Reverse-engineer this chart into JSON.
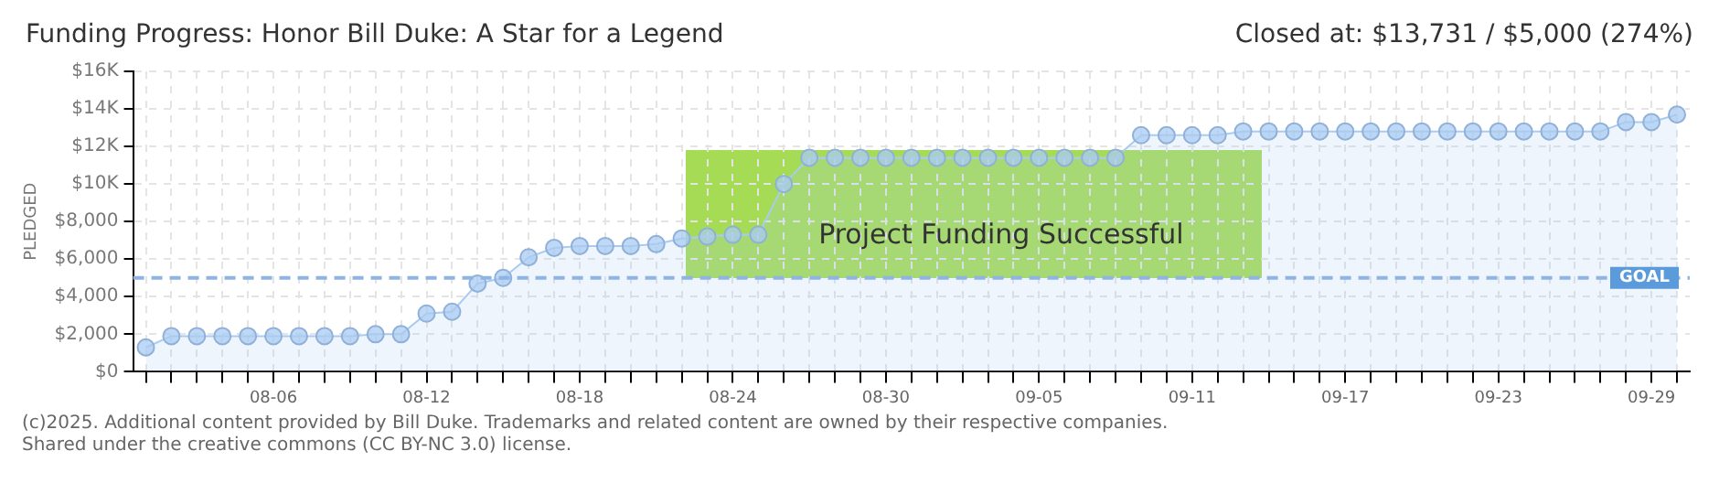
{
  "chart_data": {
    "type": "area",
    "title": "Funding Progress: Honor Bill Duke: A Star for a Legend",
    "subtitle": "Closed at: $13,731 / $5,000 (274%)",
    "ylabel": "PLEDGED",
    "categories": [
      null,
      null,
      null,
      null,
      null,
      "08-06",
      null,
      null,
      null,
      null,
      null,
      "08-12",
      null,
      null,
      null,
      null,
      null,
      "08-18",
      null,
      null,
      null,
      null,
      null,
      "08-24",
      null,
      null,
      null,
      null,
      null,
      "08-30",
      null,
      null,
      null,
      null,
      null,
      "09-05",
      null,
      null,
      null,
      null,
      null,
      "09-11",
      null,
      null,
      null,
      null,
      null,
      "09-17",
      null,
      null,
      null,
      null,
      null,
      "09-23",
      null,
      null,
      null,
      null,
      null,
      "09-29",
      null
    ],
    "series": [
      {
        "color": "#a9cbf2",
        "values": [
          1300,
          1900,
          1900,
          1900,
          1900,
          1900,
          1900,
          1900,
          1900,
          2000,
          2000,
          3100,
          3200,
          4700,
          5000,
          6100,
          6600,
          6700,
          6700,
          6700,
          6800,
          7100,
          7200,
          7300,
          7300,
          10000,
          11400,
          11400,
          11400,
          11400,
          11400,
          11400,
          11400,
          11400,
          11400,
          11400,
          11400,
          11400,
          11400,
          12600,
          12600,
          12600,
          12600,
          12800,
          12800,
          12800,
          12800,
          12800,
          12800,
          12800,
          12800,
          12800,
          12800,
          12800,
          12800,
          12800,
          12800,
          12800,
          13300,
          13300,
          13700
        ]
      }
    ],
    "ylim": [
      0,
      16000
    ],
    "yticks": [
      {
        "value": 0,
        "label": "$0"
      },
      {
        "value": 2000,
        "label": "$2,000"
      },
      {
        "value": 4000,
        "label": "$4,000"
      },
      {
        "value": 6000,
        "label": "$6,000"
      },
      {
        "value": 8000,
        "label": "$8,000"
      },
      {
        "value": 10000,
        "label": "$10K"
      },
      {
        "value": 12000,
        "label": "$12K"
      },
      {
        "value": 14000,
        "label": "$14K"
      },
      {
        "value": 16000,
        "label": "$16K"
      }
    ],
    "ref_lines": [
      {
        "axis": "y",
        "value": 5000,
        "label": "GOAL",
        "color": "#8db4e2",
        "line_style": "dashed"
      }
    ],
    "annotations": [
      "Project Funding Successful",
      "(c)2025. Additional content provided by Bill Duke. Trademarks and related content are owned by their respective companies.",
      "Shared under the creative commons (CC BY-NC 3.0) license."
    ],
    "grid": true,
    "legend": false,
    "marker": "circle",
    "line_style": "solid"
  }
}
